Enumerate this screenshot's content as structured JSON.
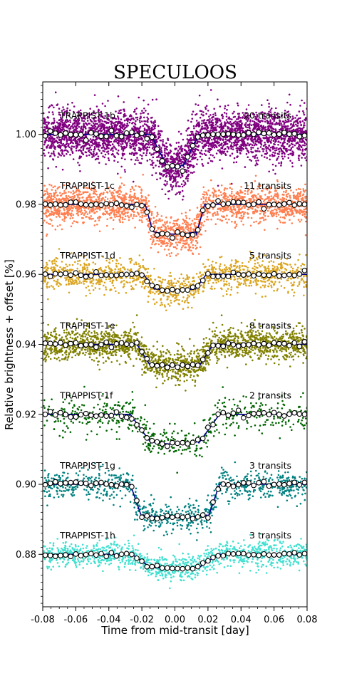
{
  "chart_data": {
    "type": "scatter",
    "title": "SPECULOOS",
    "xlabel": "Time from mid-transit [day]",
    "ylabel": "Relative brightness + offset [%]",
    "xlim": [
      -0.08,
      0.08
    ],
    "ylim": [
      0.865,
      1.015
    ],
    "x_ticks": [
      -0.08,
      -0.06,
      -0.04,
      -0.02,
      0.0,
      0.02,
      0.04,
      0.06,
      0.08
    ],
    "x_tick_labels": [
      "-0.08",
      "-0.06",
      "-0.04",
      "-0.02",
      "0.00",
      "0.02",
      "0.04",
      "0.06",
      "0.08"
    ],
    "y_ticks": [
      0.88,
      0.9,
      0.92,
      0.94,
      0.96,
      0.98,
      1.0
    ],
    "y_tick_labels": [
      "0.88",
      "0.90",
      "0.92",
      "0.94",
      "0.96",
      "0.98",
      "1.00"
    ],
    "grid": false,
    "legend": "none",
    "series": [
      {
        "name": "TRAPPIST-1b",
        "annotation": "20 transits",
        "color": "#800080",
        "offset": 1.0,
        "depth": 0.0095,
        "t1": 0.0145,
        "t2": 0.0045,
        "scatter": 0.0035,
        "density": 3500
      },
      {
        "name": "TRAPPIST-1c",
        "annotation": "11 transits",
        "color": "#ff7f50",
        "offset": 0.98,
        "depth": 0.0085,
        "t1": 0.018,
        "t2": 0.013,
        "scatter": 0.0025,
        "density": 2200
      },
      {
        "name": "TRAPPIST-1d",
        "annotation": "5 transits",
        "color": "#daa520",
        "offset": 0.96,
        "depth": 0.0045,
        "t1": 0.019,
        "t2": 0.012,
        "scatter": 0.0022,
        "density": 1300
      },
      {
        "name": "TRAPPIST-1e",
        "annotation": "8 transits",
        "color": "#808000",
        "offset": 0.94,
        "depth": 0.006,
        "t1": 0.023,
        "t2": 0.015,
        "scatter": 0.0022,
        "density": 2000
      },
      {
        "name": "TRAPPIST-1f",
        "annotation": "2 transits",
        "color": "#006400",
        "offset": 0.92,
        "depth": 0.0085,
        "t1": 0.027,
        "t2": 0.014,
        "scatter": 0.0025,
        "density": 550
      },
      {
        "name": "TRAPPIST-1g",
        "annotation": "3 transits",
        "color": "#008080",
        "offset": 0.9,
        "depth": 0.0095,
        "t1": 0.027,
        "t2": 0.02,
        "scatter": 0.0022,
        "density": 850
      },
      {
        "name": "TRAPPIST-1h",
        "annotation": "3 transits",
        "color": "#40e0d0",
        "offset": 0.88,
        "depth": 0.004,
        "t1": 0.026,
        "t2": 0.014,
        "scatter": 0.0018,
        "density": 1200
      }
    ],
    "model_line_color": "#00008b",
    "binned_marker": "white circle with black edge"
  }
}
